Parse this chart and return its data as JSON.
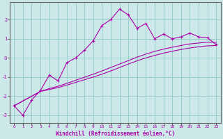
{
  "xlabel": "Windchill (Refroidissement éolien,°C)",
  "bg_color": "#cce8e8",
  "line_color": "#aa00aa",
  "grid_color": "#99cccc",
  "axis_color": "#666666",
  "xlim": [
    -0.5,
    23.5
  ],
  "ylim": [
    -3.4,
    2.9
  ],
  "xticks": [
    0,
    1,
    2,
    3,
    4,
    5,
    6,
    7,
    8,
    9,
    10,
    11,
    12,
    13,
    14,
    15,
    16,
    17,
    18,
    19,
    20,
    21,
    22,
    23
  ],
  "yticks": [
    -3,
    -2,
    -1,
    0,
    1,
    2
  ],
  "main_x": [
    0,
    1,
    2,
    3,
    4,
    5,
    6,
    7,
    8,
    9,
    10,
    11,
    12,
    13,
    14,
    15,
    16,
    17,
    18,
    19,
    20,
    21,
    22,
    23
  ],
  "main_y": [
    -2.5,
    -3.0,
    -2.2,
    -1.7,
    -0.9,
    -1.2,
    -0.25,
    0.0,
    0.4,
    0.9,
    1.7,
    2.0,
    2.55,
    2.25,
    1.55,
    1.8,
    1.0,
    1.25,
    1.0,
    1.1,
    1.3,
    1.1,
    1.05,
    0.7
  ],
  "line2_x": [
    0,
    3,
    4,
    5,
    6,
    7,
    8,
    9,
    10,
    11,
    12,
    13,
    14,
    15,
    16,
    17,
    18,
    19,
    20,
    21,
    22,
    23
  ],
  "line2_y": [
    -2.5,
    -1.75,
    -1.65,
    -1.55,
    -1.42,
    -1.28,
    -1.14,
    -1.0,
    -0.85,
    -0.68,
    -0.5,
    -0.32,
    -0.15,
    0.0,
    0.13,
    0.25,
    0.35,
    0.44,
    0.52,
    0.58,
    0.63,
    0.65
  ],
  "line3_x": [
    0,
    3,
    4,
    5,
    6,
    7,
    8,
    9,
    10,
    11,
    12,
    13,
    14,
    15,
    16,
    17,
    18,
    19,
    20,
    21,
    22,
    23
  ],
  "line3_y": [
    -2.5,
    -1.75,
    -1.6,
    -1.48,
    -1.33,
    -1.17,
    -1.01,
    -0.85,
    -0.68,
    -0.5,
    -0.32,
    -0.14,
    0.04,
    0.2,
    0.34,
    0.46,
    0.56,
    0.65,
    0.73,
    0.78,
    0.82,
    0.82
  ]
}
